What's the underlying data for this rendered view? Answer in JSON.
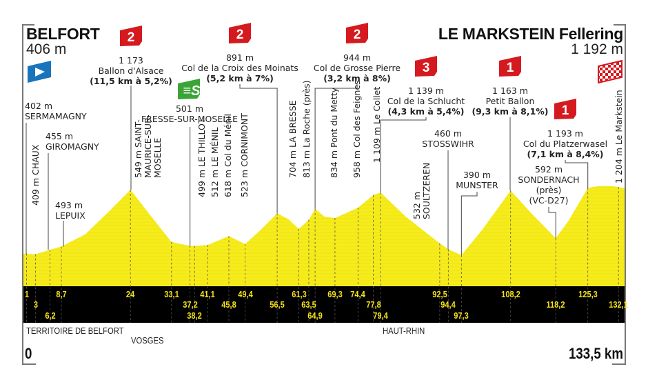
{
  "start": {
    "name": "BELFORT",
    "altitude": "406 m"
  },
  "finish": {
    "name": "LE MARKSTEIN Fellering",
    "altitude": "1 192 m"
  },
  "colors": {
    "profile": "#f7ec1b",
    "band": "#000000",
    "km_text": "#f5e21a",
    "climb_badge": "#d51a1f",
    "sprint_badge": "#3aa437",
    "start_flag": "#1a74bb"
  },
  "climbs": [
    {
      "category": "2",
      "altitude": "1 173",
      "name": "Ballon d'Alsace",
      "detail": "(11,5 km à 5,2%)"
    },
    {
      "category": "2",
      "altitude": "891 m",
      "name": "Col de la Croix des Moinats",
      "detail": "(5,2 km à 7%)"
    },
    {
      "category": "2",
      "altitude": "944 m",
      "name": "Col de Grosse Pierre",
      "detail": "(3,2 km à 8%)"
    },
    {
      "category": "3",
      "altitude": "1 139 m",
      "name": "Col de la Schlucht",
      "detail": "(4,3 km à 5,4%)"
    },
    {
      "category": "1",
      "altitude": "1 163 m",
      "name": "Petit Ballon",
      "detail": "(9,3 km à 8,1%)"
    },
    {
      "category": "1",
      "altitude": "1 193 m",
      "name": "Col du Platzerwasel",
      "detail": "(7,1 km à 8,4%)"
    }
  ],
  "sprint": {
    "icon": "sprint-s-icon",
    "altitude": "501 m",
    "name": "FRESSE-SUR-MOSELLE"
  },
  "places": [
    {
      "alt": "402 m",
      "name": "SERMAMAGNY"
    },
    {
      "alt": "455 m",
      "name": "GIROMAGNY"
    },
    {
      "alt": "493 m",
      "name": "LEPUIX"
    },
    {
      "alt": "460 m",
      "name": "STOSSWIHR"
    },
    {
      "alt": "390 m",
      "name": "MUNSTER"
    },
    {
      "alt": "592 m",
      "name": "SONDERNACH",
      "extra1": "(près)",
      "extra2": "(VC-D27)"
    }
  ],
  "vertical_places": [
    {
      "text": "409 m CHAUX"
    },
    {
      "text": "549 m SAINT-",
      "text2": "MAURICE-SUR-",
      "text3": "MOSELLE"
    },
    {
      "text": "499 m LE THILLOT"
    },
    {
      "text": "512 m LE MÉNIL"
    },
    {
      "text": "618 m Col du Ménil"
    },
    {
      "text": "523 m CORNIMONT"
    },
    {
      "text": "704 m LA BRESSE"
    },
    {
      "text": "813 m La Roche (près)"
    },
    {
      "text": "834 m Pont du Metty"
    },
    {
      "text": "958 m Col des Feignes"
    },
    {
      "text": "1 109 m Le Collet"
    },
    {
      "text": "532 m",
      "text2": "SOULTZEREN"
    },
    {
      "text": "1 204 m Le Markstein"
    }
  ],
  "km_markers": {
    "row1": [
      "1",
      "8,7",
      "24",
      "33,1",
      "41,1",
      "49,4",
      "61,3",
      "69,3",
      "74,4",
      "92,5",
      "108,2",
      "125,3"
    ],
    "row2": [
      "3",
      "37,2",
      "45,8",
      "56,5",
      "63,5",
      "77,8",
      "94,4",
      "118,2",
      "132,1"
    ],
    "row3": [
      "6,2",
      "38,2",
      "64,9",
      "79,4",
      "97,3"
    ]
  },
  "departments": [
    "TERRITOIRE DE BELFORT",
    "VOSGES",
    "HAUT-RHIN"
  ],
  "axis": {
    "start": "0",
    "end": "133,5 km"
  },
  "chart_data": {
    "type": "area",
    "xlabel": "",
    "ylabel": "",
    "xlim": [
      0,
      133.5
    ],
    "grid": false,
    "profile": [
      [
        0,
        406
      ],
      [
        1,
        409
      ],
      [
        3,
        402
      ],
      [
        6.2,
        455
      ],
      [
        8.7,
        493
      ],
      [
        14,
        640
      ],
      [
        19,
        900
      ],
      [
        24,
        1173
      ],
      [
        28.5,
        860
      ],
      [
        33.1,
        549
      ],
      [
        37.2,
        501
      ],
      [
        38.2,
        499
      ],
      [
        41.1,
        512
      ],
      [
        45.8,
        618
      ],
      [
        49.4,
        523
      ],
      [
        53,
        700
      ],
      [
        56.5,
        891
      ],
      [
        59,
        820
      ],
      [
        61.3,
        704
      ],
      [
        63.5,
        813
      ],
      [
        64.9,
        944
      ],
      [
        67,
        850
      ],
      [
        69.3,
        834
      ],
      [
        72,
        900
      ],
      [
        74.4,
        958
      ],
      [
        77.8,
        1109
      ],
      [
        79.4,
        1139
      ],
      [
        85,
        850
      ],
      [
        92.5,
        532
      ],
      [
        94.4,
        460
      ],
      [
        97.3,
        390
      ],
      [
        102,
        700
      ],
      [
        108.2,
        1163
      ],
      [
        113,
        880
      ],
      [
        118.2,
        592
      ],
      [
        121,
        800
      ],
      [
        125.3,
        1193
      ],
      [
        129,
        1230
      ],
      [
        132.1,
        1204
      ],
      [
        133.5,
        1192
      ]
    ]
  }
}
